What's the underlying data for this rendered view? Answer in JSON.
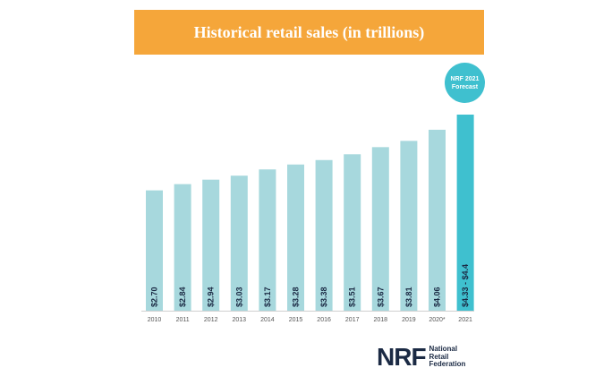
{
  "colors": {
    "banner": "#f5a63a",
    "bar": "#a7d8dd",
    "forecast_bar": "#3fc0cf",
    "badge": "#3fc0cf",
    "label": "#1b2a44",
    "tick": "#555555",
    "axis": "#cfcfcf"
  },
  "chart_data": {
    "type": "bar",
    "title": "Historical retail sales (in trillions)",
    "categories": [
      "2010",
      "2011",
      "2012",
      "2013",
      "2014",
      "2015",
      "2016",
      "2017",
      "2018",
      "2019",
      "2020*",
      "2021"
    ],
    "values": [
      2.7,
      2.84,
      2.94,
      3.03,
      3.17,
      3.28,
      3.38,
      3.51,
      3.67,
      3.81,
      4.06,
      4.4
    ],
    "value_labels": [
      "$2.70",
      "$2.84",
      "$2.94",
      "$3.03",
      "$3.17",
      "$3.28",
      "$3.38",
      "$3.51",
      "$3.67",
      "$3.81",
      "$4.06",
      "$4.33 - $4.4"
    ],
    "forecast_index": 11,
    "forecast_range": [
      4.33,
      4.4
    ],
    "annotation": {
      "line1": "NRF 2021",
      "line2": "Forecast"
    },
    "ylim": [
      0,
      4.4
    ],
    "grid": false,
    "legend": "none"
  },
  "logo": {
    "mark": "NRF",
    "lines": [
      "National",
      "Retail",
      "Federation"
    ]
  }
}
